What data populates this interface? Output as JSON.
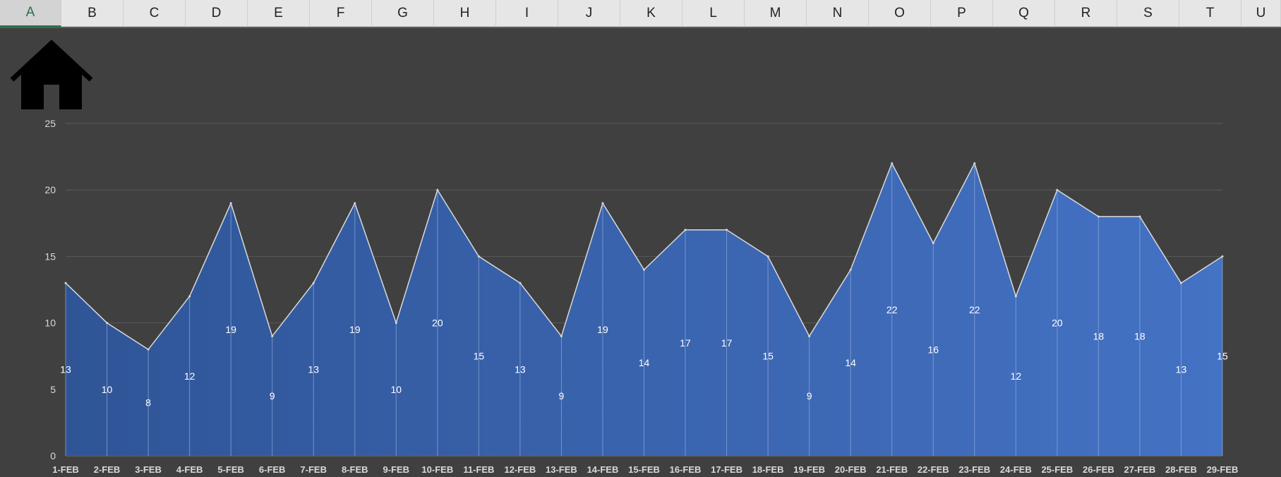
{
  "column_headers": [
    "A",
    "B",
    "C",
    "D",
    "E",
    "F",
    "G",
    "H",
    "I",
    "J",
    "K",
    "L",
    "M",
    "N",
    "O",
    "P",
    "Q",
    "R",
    "S",
    "T",
    "U"
  ],
  "active_column": "A",
  "home_button": {
    "icon": "home-icon"
  },
  "colors": {
    "background": "#404040",
    "area_fill_start": "#2f5597",
    "area_fill_end": "#4472c4",
    "line": "#d9d9d9",
    "gridline": "#5a5a5a",
    "tick_text": "#d9d9d9",
    "data_label": "#ffffff"
  },
  "chart_data": {
    "type": "area",
    "title": "",
    "xlabel": "",
    "ylabel": "",
    "ylim": [
      0,
      25
    ],
    "yticks": [
      0,
      5,
      10,
      15,
      20,
      25
    ],
    "gridlines": true,
    "legend": "none",
    "categories": [
      "1-FEB",
      "2-FEB",
      "3-FEB",
      "4-FEB",
      "5-FEB",
      "6-FEB",
      "7-FEB",
      "8-FEB",
      "9-FEB",
      "10-FEB",
      "11-FEB",
      "12-FEB",
      "13-FEB",
      "14-FEB",
      "15-FEB",
      "16-FEB",
      "17-FEB",
      "18-FEB",
      "19-FEB",
      "20-FEB",
      "21-FEB",
      "22-FEB",
      "23-FEB",
      "24-FEB",
      "25-FEB",
      "26-FEB",
      "27-FEB",
      "28-FEB",
      "29-FEB"
    ],
    "values": [
      13,
      10,
      8,
      12,
      19,
      9,
      13,
      19,
      10,
      20,
      15,
      13,
      9,
      19,
      14,
      17,
      17,
      15,
      9,
      14,
      22,
      16,
      22,
      12,
      20,
      18,
      18,
      13,
      15
    ]
  }
}
